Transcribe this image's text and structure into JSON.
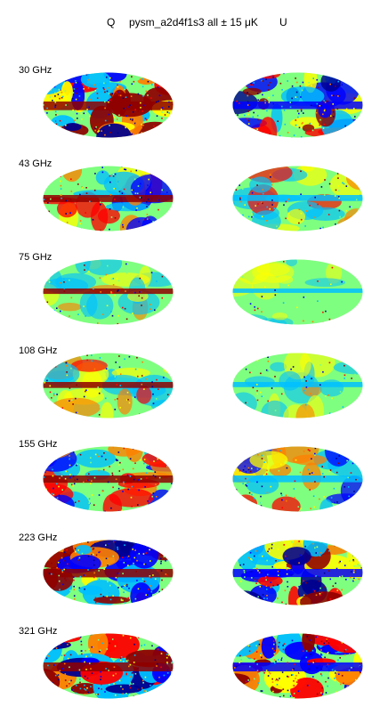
{
  "title": {
    "left": "Q",
    "center": "pysm_a2d4f1s3 all ± 15 μK",
    "right": "U"
  },
  "rows": [
    {
      "freq": "30 GHz",
      "q_level": 0.95,
      "u_level": 0.75
    },
    {
      "freq": "43 GHz",
      "q_level": 0.65,
      "u_level": 0.45
    },
    {
      "freq": "75 GHz",
      "q_level": 0.35,
      "u_level": 0.15
    },
    {
      "freq": "108 GHz",
      "q_level": 0.45,
      "u_level": 0.3
    },
    {
      "freq": "155 GHz",
      "q_level": 0.7,
      "u_level": 0.6
    },
    {
      "freq": "223 GHz",
      "q_level": 0.9,
      "u_level": 0.85
    },
    {
      "freq": "321 GHz",
      "q_level": 1.0,
      "u_level": 1.0
    }
  ],
  "colors": {
    "background": "#ffffff",
    "colormap": [
      "#00008f",
      "#0000ff",
      "#00bfff",
      "#7fff7f",
      "#ffff00",
      "#ff7f00",
      "#ff0000",
      "#8f0000"
    ]
  }
}
